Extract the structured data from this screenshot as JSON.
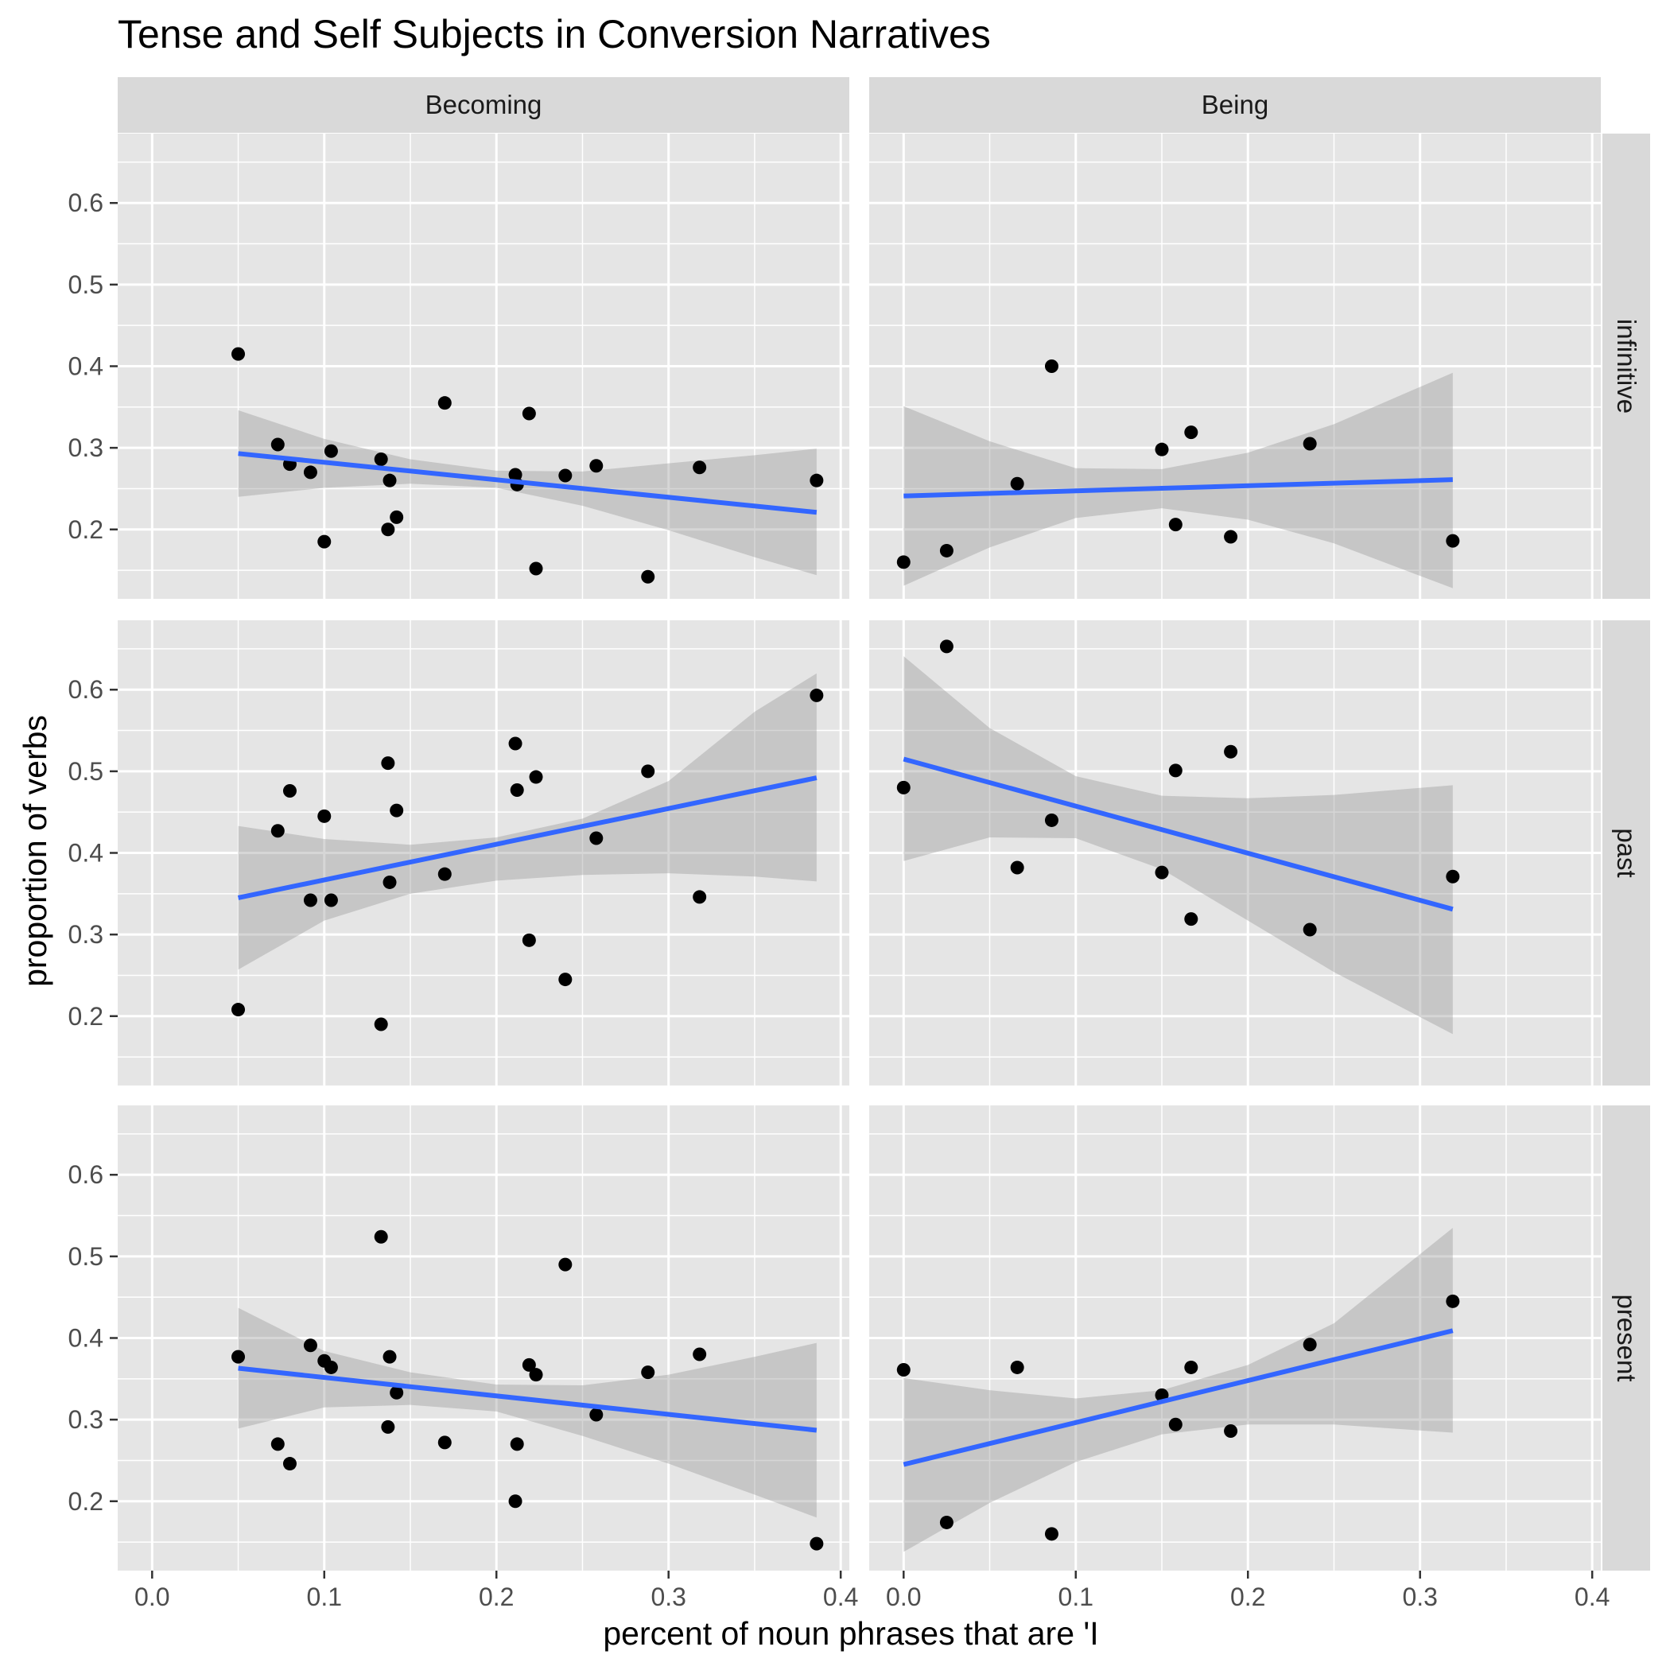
{
  "chart_data": {
    "type": "scatter",
    "title": "Tense and Self Subjects in Conversion Narratives",
    "xlabel": "percent of noun phrases that are 'I",
    "ylabel": "proportion of verbs",
    "xlim": [
      -0.02,
      0.405
    ],
    "ylim": [
      0.115,
      0.685
    ],
    "x_ticks": [
      0.0,
      0.1,
      0.2,
      0.3,
      0.4
    ],
    "x_tick_labels": [
      "0.0",
      "0.1",
      "0.2",
      "0.3",
      "0.4"
    ],
    "y_ticks": [
      0.2,
      0.3,
      0.4,
      0.5,
      0.6
    ],
    "y_tick_labels": [
      "0.2",
      "0.3",
      "0.4",
      "0.5",
      "0.6"
    ],
    "grid": true,
    "columns": [
      "Becoming",
      "Being"
    ],
    "rows": [
      "infinitive",
      "past",
      "present"
    ],
    "colors": {
      "panel_bg": "#e5e5e5",
      "strip_bg": "#d9d9d9",
      "grid": "#ffffff",
      "point": "#000000",
      "smooth_line": "#3366ff",
      "ribbon": "#999999"
    },
    "panels": [
      {
        "column": "Becoming",
        "row": "infinitive",
        "points": [
          [
            0.05,
            0.415
          ],
          [
            0.073,
            0.304
          ],
          [
            0.08,
            0.28
          ],
          [
            0.092,
            0.27
          ],
          [
            0.1,
            0.185
          ],
          [
            0.104,
            0.296
          ],
          [
            0.133,
            0.286
          ],
          [
            0.137,
            0.2
          ],
          [
            0.138,
            0.26
          ],
          [
            0.142,
            0.215
          ],
          [
            0.17,
            0.355
          ],
          [
            0.211,
            0.267
          ],
          [
            0.212,
            0.255
          ],
          [
            0.219,
            0.342
          ],
          [
            0.223,
            0.152
          ],
          [
            0.24,
            0.266
          ],
          [
            0.258,
            0.278
          ],
          [
            0.288,
            0.142
          ],
          [
            0.318,
            0.276
          ],
          [
            0.386,
            0.26
          ]
        ],
        "fit": {
          "x": [
            0.05,
            0.386
          ],
          "y": [
            0.293,
            0.221
          ]
        },
        "ribbon": {
          "x": [
            0.05,
            0.1,
            0.15,
            0.2,
            0.25,
            0.3,
            0.35,
            0.386
          ],
          "lower": [
            0.24,
            0.251,
            0.256,
            0.251,
            0.229,
            0.199,
            0.166,
            0.144
          ],
          "upper": [
            0.346,
            0.311,
            0.286,
            0.272,
            0.271,
            0.281,
            0.291,
            0.299
          ]
        }
      },
      {
        "column": "Being",
        "row": "infinitive",
        "points": [
          [
            0.0,
            0.16
          ],
          [
            0.025,
            0.174
          ],
          [
            0.066,
            0.256
          ],
          [
            0.086,
            0.4
          ],
          [
            0.15,
            0.298
          ],
          [
            0.158,
            0.206
          ],
          [
            0.167,
            0.319
          ],
          [
            0.19,
            0.191
          ],
          [
            0.236,
            0.305
          ],
          [
            0.319,
            0.186
          ]
        ],
        "fit": {
          "x": [
            0.0,
            0.319
          ],
          "y": [
            0.241,
            0.261
          ]
        },
        "ribbon": {
          "x": [
            0.0,
            0.05,
            0.1,
            0.15,
            0.2,
            0.25,
            0.319
          ],
          "lower": [
            0.131,
            0.178,
            0.214,
            0.226,
            0.212,
            0.183,
            0.128
          ],
          "upper": [
            0.351,
            0.308,
            0.275,
            0.274,
            0.294,
            0.329,
            0.392
          ]
        }
      },
      {
        "column": "Becoming",
        "row": "past",
        "points": [
          [
            0.05,
            0.208
          ],
          [
            0.073,
            0.427
          ],
          [
            0.08,
            0.476
          ],
          [
            0.092,
            0.342
          ],
          [
            0.1,
            0.445
          ],
          [
            0.104,
            0.342
          ],
          [
            0.133,
            0.19
          ],
          [
            0.137,
            0.51
          ],
          [
            0.138,
            0.364
          ],
          [
            0.142,
            0.452
          ],
          [
            0.17,
            0.374
          ],
          [
            0.211,
            0.534
          ],
          [
            0.212,
            0.477
          ],
          [
            0.219,
            0.293
          ],
          [
            0.223,
            0.493
          ],
          [
            0.24,
            0.245
          ],
          [
            0.258,
            0.418
          ],
          [
            0.288,
            0.5
          ],
          [
            0.318,
            0.346
          ],
          [
            0.386,
            0.593
          ]
        ],
        "fit": {
          "x": [
            0.05,
            0.386
          ],
          "y": [
            0.345,
            0.492
          ]
        },
        "ribbon": {
          "x": [
            0.05,
            0.1,
            0.15,
            0.2,
            0.25,
            0.3,
            0.35,
            0.386
          ],
          "lower": [
            0.257,
            0.317,
            0.35,
            0.366,
            0.373,
            0.375,
            0.371,
            0.365
          ],
          "upper": [
            0.433,
            0.417,
            0.41,
            0.419,
            0.442,
            0.488,
            0.573,
            0.62
          ]
        }
      },
      {
        "column": "Being",
        "row": "past",
        "points": [
          [
            0.0,
            0.48
          ],
          [
            0.025,
            0.653
          ],
          [
            0.066,
            0.382
          ],
          [
            0.086,
            0.44
          ],
          [
            0.15,
            0.376
          ],
          [
            0.158,
            0.501
          ],
          [
            0.167,
            0.319
          ],
          [
            0.19,
            0.524
          ],
          [
            0.236,
            0.306
          ],
          [
            0.319,
            0.371
          ]
        ],
        "fit": {
          "x": [
            0.0,
            0.319
          ],
          "y": [
            0.515,
            0.331
          ]
        },
        "ribbon": {
          "x": [
            0.0,
            0.05,
            0.1,
            0.15,
            0.2,
            0.25,
            0.319
          ],
          "lower": [
            0.39,
            0.419,
            0.418,
            0.38,
            0.317,
            0.254,
            0.178
          ],
          "upper": [
            0.641,
            0.553,
            0.494,
            0.47,
            0.467,
            0.471,
            0.483
          ]
        }
      },
      {
        "column": "Becoming",
        "row": "present",
        "points": [
          [
            0.05,
            0.377
          ],
          [
            0.073,
            0.27
          ],
          [
            0.08,
            0.246
          ],
          [
            0.092,
            0.391
          ],
          [
            0.1,
            0.372
          ],
          [
            0.104,
            0.364
          ],
          [
            0.133,
            0.524
          ],
          [
            0.137,
            0.291
          ],
          [
            0.138,
            0.377
          ],
          [
            0.142,
            0.333
          ],
          [
            0.17,
            0.272
          ],
          [
            0.211,
            0.2
          ],
          [
            0.212,
            0.27
          ],
          [
            0.219,
            0.367
          ],
          [
            0.223,
            0.355
          ],
          [
            0.24,
            0.49
          ],
          [
            0.258,
            0.306
          ],
          [
            0.288,
            0.358
          ],
          [
            0.318,
            0.38
          ],
          [
            0.386,
            0.148
          ]
        ],
        "fit": {
          "x": [
            0.05,
            0.386
          ],
          "y": [
            0.363,
            0.287
          ]
        },
        "ribbon": {
          "x": [
            0.05,
            0.1,
            0.15,
            0.2,
            0.25,
            0.3,
            0.35,
            0.386
          ],
          "lower": [
            0.289,
            0.315,
            0.318,
            0.31,
            0.28,
            0.246,
            0.208,
            0.18
          ],
          "upper": [
            0.437,
            0.384,
            0.358,
            0.343,
            0.342,
            0.355,
            0.377,
            0.394
          ]
        }
      },
      {
        "column": "Being",
        "row": "present",
        "points": [
          [
            0.0,
            0.361
          ],
          [
            0.025,
            0.174
          ],
          [
            0.066,
            0.364
          ],
          [
            0.086,
            0.16
          ],
          [
            0.15,
            0.33
          ],
          [
            0.158,
            0.294
          ],
          [
            0.167,
            0.364
          ],
          [
            0.19,
            0.286
          ],
          [
            0.236,
            0.392
          ],
          [
            0.319,
            0.445
          ]
        ],
        "fit": {
          "x": [
            0.0,
            0.319
          ],
          "y": [
            0.245,
            0.409
          ]
        },
        "ribbon": {
          "x": [
            0.0,
            0.05,
            0.1,
            0.15,
            0.2,
            0.25,
            0.319
          ],
          "lower": [
            0.138,
            0.198,
            0.248,
            0.282,
            0.294,
            0.294,
            0.284
          ],
          "upper": [
            0.351,
            0.336,
            0.326,
            0.336,
            0.367,
            0.418,
            0.535
          ]
        }
      }
    ]
  }
}
